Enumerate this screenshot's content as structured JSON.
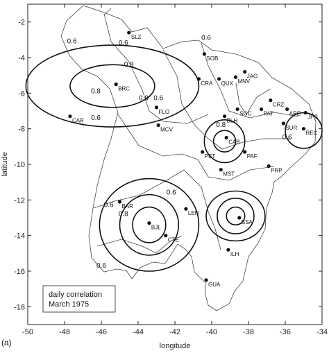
{
  "figure": {
    "panel_label": "(a)",
    "xlabel": "longitude",
    "ylabel": "latitude",
    "xlim": [
      -50,
      -34
    ],
    "ylim": [
      -19,
      -1
    ],
    "x_ticks": [
      "-50",
      "-48",
      "-46",
      "-44",
      "-42",
      "-40",
      "-38",
      "-36",
      "-34"
    ],
    "y_ticks": [
      "-2",
      "-4",
      "-6",
      "-8",
      "-10",
      "-12",
      "-14",
      "-16",
      "-18"
    ],
    "legend": {
      "line1": "daily correlation",
      "line2": "March 1975"
    }
  },
  "stations": [
    {
      "code": "SLZ",
      "lon": -44.5,
      "lat": -2.6
    },
    {
      "code": "SOB",
      "lon": -40.4,
      "lat": -3.8
    },
    {
      "code": "CRA",
      "lon": -40.7,
      "lat": -5.2
    },
    {
      "code": "QUX",
      "lon": -39.6,
      "lat": -5.2
    },
    {
      "code": "MNV",
      "lon": -38.7,
      "lat": -5.1
    },
    {
      "code": "JAG",
      "lon": -38.2,
      "lat": -4.8
    },
    {
      "code": "BRC",
      "lon": -45.2,
      "lat": -5.5
    },
    {
      "code": "FLO",
      "lon": -43.0,
      "lat": -6.8
    },
    {
      "code": "CAR",
      "lon": -47.7,
      "lat": -7.3
    },
    {
      "code": "CRZ",
      "lon": -36.8,
      "lat": -6.4
    },
    {
      "code": "SGC",
      "lon": -38.6,
      "lat": -6.9
    },
    {
      "code": "PAT",
      "lon": -37.3,
      "lat": -6.9
    },
    {
      "code": "ARE",
      "lon": -35.9,
      "lat": -6.9
    },
    {
      "code": "JPS",
      "lon": -34.9,
      "lat": -7.1
    },
    {
      "code": "BLH",
      "lon": -39.3,
      "lat": -7.3
    },
    {
      "code": "SUR",
      "lon": -36.1,
      "lat": -7.7
    },
    {
      "code": "REC",
      "lon": -35.0,
      "lat": -8.0
    },
    {
      "code": "MCV",
      "lon": -42.9,
      "lat": -7.8
    },
    {
      "code": "CAB",
      "lon": -39.2,
      "lat": -8.5
    },
    {
      "code": "PET",
      "lon": -40.5,
      "lat": -9.3
    },
    {
      "code": "PAF",
      "lon": -38.2,
      "lat": -9.3
    },
    {
      "code": "MST",
      "lon": -39.5,
      "lat": -10.3
    },
    {
      "code": "PRP",
      "lon": -36.9,
      "lat": -10.1
    },
    {
      "code": "BAR",
      "lon": -45.0,
      "lat": -12.1
    },
    {
      "code": "LEN",
      "lon": -41.4,
      "lat": -12.5
    },
    {
      "code": "BJL",
      "lon": -43.4,
      "lat": -13.3
    },
    {
      "code": "SSA",
      "lon": -38.5,
      "lat": -13.0
    },
    {
      "code": "CTE",
      "lon": -42.5,
      "lat": -14.0
    },
    {
      "code": "ILH",
      "lon": -39.1,
      "lat": -14.8
    },
    {
      "code": "GUA",
      "lon": -40.3,
      "lat": -16.5
    }
  ],
  "contour_groups": [
    {
      "center_lon": -45.4,
      "center_lat": -5.6,
      "rings": [
        {
          "level": "0.8",
          "rx": 2.3,
          "ry": 1.2
        },
        {
          "level": "0.6",
          "rx": 4.7,
          "ry": 2.3
        }
      ]
    },
    {
      "center_lon": -39.3,
      "center_lat": -8.7,
      "rings": [
        {
          "level": "0.8",
          "rx": 0.6,
          "ry": 0.6
        },
        {
          "level": "0.6",
          "rx": 1.1,
          "ry": 1.2
        }
      ]
    },
    {
      "center_lon": -35.0,
      "center_lat": -8.1,
      "rings": [
        {
          "level": "0.6",
          "rx": 1.0,
          "ry": 1.0
        }
      ]
    },
    {
      "center_lon": -43.4,
      "center_lat": -13.4,
      "rings": [
        {
          "level": "0.8",
          "rx": 0.9,
          "ry": 1.0
        },
        {
          "level": "0.8",
          "rx": 1.6,
          "ry": 1.7
        },
        {
          "level": "0.6",
          "rx": 2.7,
          "ry": 2.6
        }
      ]
    },
    {
      "center_lon": -38.7,
      "center_lat": -12.9,
      "rings": [
        {
          "level": "0.8",
          "rx": 0.5,
          "ry": 0.5
        },
        {
          "level": "0.6",
          "rx": 1.0,
          "ry": 1.0
        },
        {
          "level": "0.6",
          "rx": 1.6,
          "ry": 1.4
        }
      ]
    }
  ],
  "contour_labels": [
    {
      "text": "0.6",
      "lon": -47.6,
      "lat": -3.2
    },
    {
      "text": "0.6",
      "lon": -44.8,
      "lat": -3.3
    },
    {
      "text": "0.8",
      "lon": -44.5,
      "lat": -4.5
    },
    {
      "text": "0.8",
      "lon": -46.3,
      "lat": -6.0
    },
    {
      "text": "0.8",
      "lon": -43.7,
      "lat": -6.4
    },
    {
      "text": "0.6",
      "lon": -42.9,
      "lat": -6.4
    },
    {
      "text": "0.6",
      "lon": -46.3,
      "lat": -7.5
    },
    {
      "text": "0.6",
      "lon": -40.3,
      "lat": -3.0
    },
    {
      "text": "0.8",
      "lon": -39.5,
      "lat": -7.9
    },
    {
      "text": "0.6",
      "lon": -35.9,
      "lat": -8.6
    },
    {
      "text": "0.6",
      "lon": -42.2,
      "lat": -11.7
    },
    {
      "text": "0.6",
      "lon": -45.6,
      "lat": -12.4
    },
    {
      "text": "0.8",
      "lon": -44.8,
      "lat": -12.9
    },
    {
      "text": "0.6",
      "lon": -46.0,
      "lat": -15.8
    }
  ]
}
